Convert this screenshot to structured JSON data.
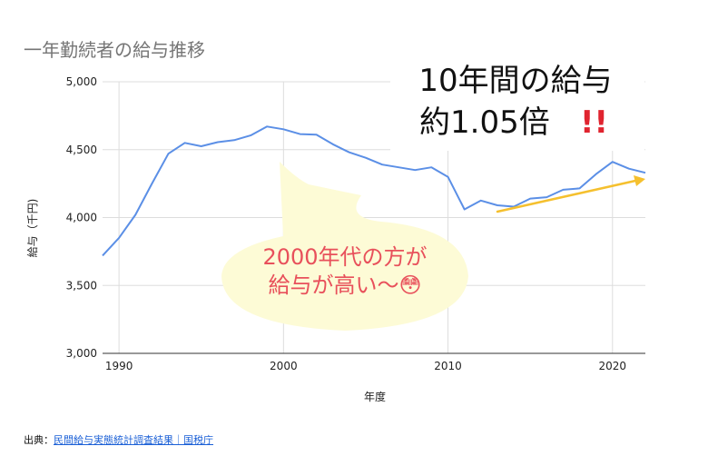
{
  "colors": {
    "line": "#5b8fe6",
    "trend_arrow": "#f5c02e",
    "bubble_fill": "#fdfbd6",
    "bubble_text": "#e8505b",
    "exclaim": "#e0242f"
  },
  "annotations": {
    "headline_line1": "10年間の給与",
    "headline_line2": "約1.05倍",
    "headline_mark": "!!",
    "bubble_line1": "2000年代の方が",
    "bubble_line2": "給与が高い〜😳"
  },
  "footer": {
    "label": "出典：",
    "link_text": "民間給与実態統計調査結果｜国税庁"
  },
  "chart_data": {
    "type": "line",
    "title": "一年勤続者の給与推移",
    "xlabel": "年度",
    "ylabel": "給与（千円)",
    "xlim": [
      1989,
      2022
    ],
    "ylim": [
      3000,
      5000
    ],
    "y_ticks": [
      3000,
      3500,
      4000,
      4500,
      5000
    ],
    "y_tick_labels": [
      "3,000",
      "3,500",
      "4,000",
      "4,500",
      "5,000"
    ],
    "x_ticks": [
      1990,
      2000,
      2010,
      2020
    ],
    "x_tick_labels": [
      "1990",
      "2000",
      "2010",
      "2020"
    ],
    "grid": true,
    "series": [
      {
        "x": [
          1989,
          1990,
          1991,
          1992,
          1993,
          1994,
          1995,
          1996,
          1997,
          1998,
          1999,
          2000,
          2001,
          2002,
          2003,
          2004,
          2005,
          2006,
          2007,
          2008,
          2009,
          2010,
          2011,
          2012,
          2013,
          2014,
          2015,
          2016,
          2017,
          2018,
          2019,
          2020,
          2021,
          2022
        ],
        "values": [
          3720,
          3850,
          4020,
          4250,
          4470,
          4550,
          4525,
          4555,
          4570,
          4605,
          4670,
          4650,
          4615,
          4610,
          4540,
          4480,
          4440,
          4390,
          4370,
          4350,
          4370,
          4300,
          4060,
          4125,
          4090,
          4080,
          4140,
          4150,
          4205,
          4215,
          4320,
          4410,
          4360,
          4330
        ]
      }
    ]
  }
}
